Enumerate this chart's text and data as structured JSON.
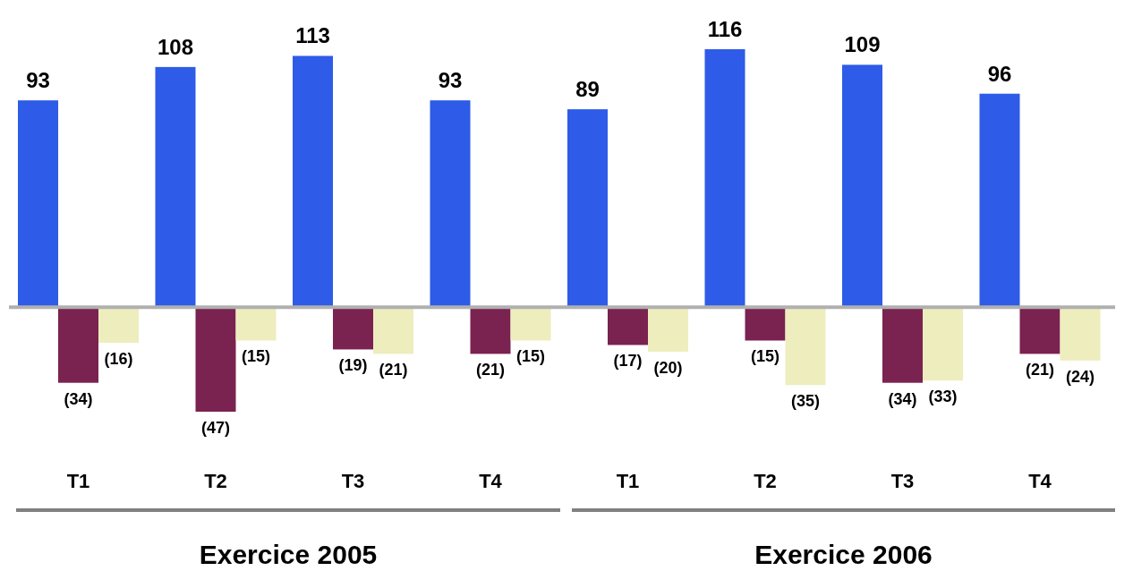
{
  "chart_data": {
    "type": "bar",
    "categories": [
      "T1",
      "T2",
      "T3",
      "T4",
      "T1",
      "T2",
      "T3",
      "T4"
    ],
    "series": [
      {
        "color": "#2e5be8",
        "values": [
          93,
          108,
          113,
          93,
          89,
          116,
          109,
          96
        ],
        "value_labels": [
          "93",
          "108",
          "113",
          "93",
          "89",
          "116",
          "109",
          "96"
        ]
      },
      {
        "color": "#7a2250",
        "values": [
          -34,
          -47,
          -19,
          -21,
          -17,
          -15,
          -34,
          -21
        ],
        "value_labels": [
          "(34)",
          "(47)",
          "(19)",
          "(21)",
          "(17)",
          "(15)",
          "(34)",
          "(21)"
        ]
      },
      {
        "color": "#eeedbd",
        "values": [
          -16,
          -15,
          -21,
          -15,
          -20,
          -35,
          -33,
          -24
        ],
        "value_labels": [
          "(16)",
          "(15)",
          "(21)",
          "(15)",
          "(20)",
          "(35)",
          "(33)",
          "(24)"
        ]
      }
    ],
    "annotations": [
      "Exercice 2005",
      "Exercice 2006"
    ]
  }
}
